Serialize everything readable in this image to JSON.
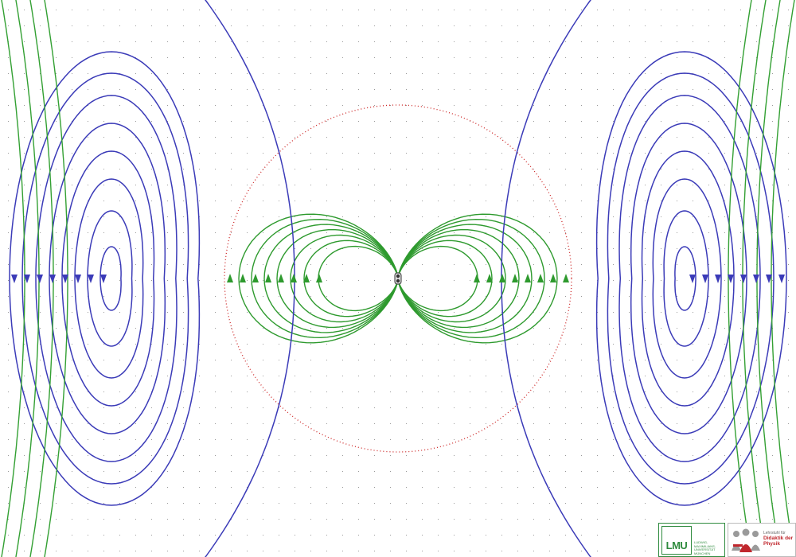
{
  "colors": {
    "near_field_lines": "#2e9a2e",
    "mid_lines": "#3b3bb8",
    "outer_lines": "#33a033",
    "wave_circle": "#cc2222",
    "grid_dots": "#9a9a9a",
    "lmu_green": "#2f8b3e",
    "ddp_red": "#c0272d"
  },
  "dipole": {
    "symbol": "dipole-oscillator"
  },
  "logos": {
    "lmu": {
      "acronym": "LMU",
      "lines": [
        "LUDWIG-",
        "MAXIMILIANS-",
        "UNIVERSITÄT",
        "MÜNCHEN"
      ]
    },
    "ddp": {
      "line1": "Lehrstuhl für",
      "line2": "Didaktik der Physik"
    }
  }
}
